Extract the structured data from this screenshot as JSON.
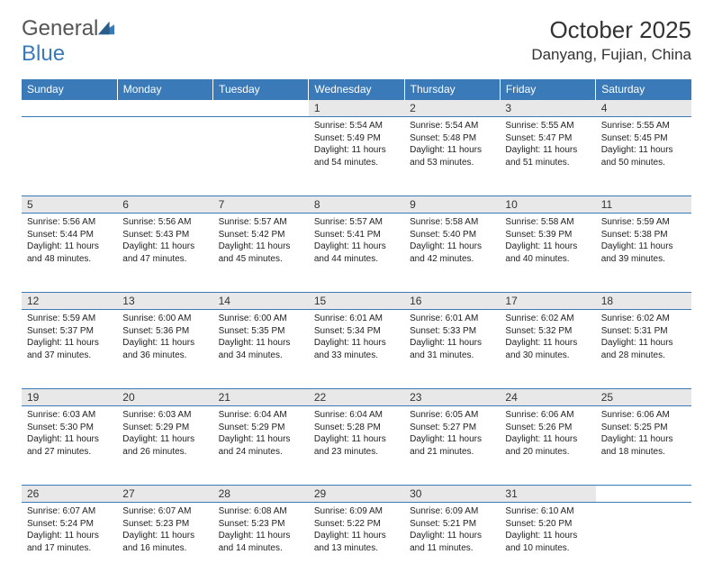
{
  "logo": {
    "word1": "General",
    "word2": "Blue"
  },
  "title": "October 2025",
  "location": "Danyang, Fujian, China",
  "day_headers": [
    "Sunday",
    "Monday",
    "Tuesday",
    "Wednesday",
    "Thursday",
    "Friday",
    "Saturday"
  ],
  "colors": {
    "header_bg": "#3a7ab8",
    "header_text": "#ffffff",
    "daynum_bg": "#e8e8e8",
    "border": "#3a7ab8"
  },
  "weeks": [
    {
      "nums": [
        "",
        "",
        "",
        "1",
        "2",
        "3",
        "4"
      ],
      "cells": [
        null,
        null,
        null,
        {
          "sr": "5:54 AM",
          "ss": "5:49 PM",
          "dl": "11 hours and 54 minutes."
        },
        {
          "sr": "5:54 AM",
          "ss": "5:48 PM",
          "dl": "11 hours and 53 minutes."
        },
        {
          "sr": "5:55 AM",
          "ss": "5:47 PM",
          "dl": "11 hours and 51 minutes."
        },
        {
          "sr": "5:55 AM",
          "ss": "5:45 PM",
          "dl": "11 hours and 50 minutes."
        }
      ]
    },
    {
      "nums": [
        "5",
        "6",
        "7",
        "8",
        "9",
        "10",
        "11"
      ],
      "cells": [
        {
          "sr": "5:56 AM",
          "ss": "5:44 PM",
          "dl": "11 hours and 48 minutes."
        },
        {
          "sr": "5:56 AM",
          "ss": "5:43 PM",
          "dl": "11 hours and 47 minutes."
        },
        {
          "sr": "5:57 AM",
          "ss": "5:42 PM",
          "dl": "11 hours and 45 minutes."
        },
        {
          "sr": "5:57 AM",
          "ss": "5:41 PM",
          "dl": "11 hours and 44 minutes."
        },
        {
          "sr": "5:58 AM",
          "ss": "5:40 PM",
          "dl": "11 hours and 42 minutes."
        },
        {
          "sr": "5:58 AM",
          "ss": "5:39 PM",
          "dl": "11 hours and 40 minutes."
        },
        {
          "sr": "5:59 AM",
          "ss": "5:38 PM",
          "dl": "11 hours and 39 minutes."
        }
      ]
    },
    {
      "nums": [
        "12",
        "13",
        "14",
        "15",
        "16",
        "17",
        "18"
      ],
      "cells": [
        {
          "sr": "5:59 AM",
          "ss": "5:37 PM",
          "dl": "11 hours and 37 minutes."
        },
        {
          "sr": "6:00 AM",
          "ss": "5:36 PM",
          "dl": "11 hours and 36 minutes."
        },
        {
          "sr": "6:00 AM",
          "ss": "5:35 PM",
          "dl": "11 hours and 34 minutes."
        },
        {
          "sr": "6:01 AM",
          "ss": "5:34 PM",
          "dl": "11 hours and 33 minutes."
        },
        {
          "sr": "6:01 AM",
          "ss": "5:33 PM",
          "dl": "11 hours and 31 minutes."
        },
        {
          "sr": "6:02 AM",
          "ss": "5:32 PM",
          "dl": "11 hours and 30 minutes."
        },
        {
          "sr": "6:02 AM",
          "ss": "5:31 PM",
          "dl": "11 hours and 28 minutes."
        }
      ]
    },
    {
      "nums": [
        "19",
        "20",
        "21",
        "22",
        "23",
        "24",
        "25"
      ],
      "cells": [
        {
          "sr": "6:03 AM",
          "ss": "5:30 PM",
          "dl": "11 hours and 27 minutes."
        },
        {
          "sr": "6:03 AM",
          "ss": "5:29 PM",
          "dl": "11 hours and 26 minutes."
        },
        {
          "sr": "6:04 AM",
          "ss": "5:29 PM",
          "dl": "11 hours and 24 minutes."
        },
        {
          "sr": "6:04 AM",
          "ss": "5:28 PM",
          "dl": "11 hours and 23 minutes."
        },
        {
          "sr": "6:05 AM",
          "ss": "5:27 PM",
          "dl": "11 hours and 21 minutes."
        },
        {
          "sr": "6:06 AM",
          "ss": "5:26 PM",
          "dl": "11 hours and 20 minutes."
        },
        {
          "sr": "6:06 AM",
          "ss": "5:25 PM",
          "dl": "11 hours and 18 minutes."
        }
      ]
    },
    {
      "nums": [
        "26",
        "27",
        "28",
        "29",
        "30",
        "31",
        ""
      ],
      "cells": [
        {
          "sr": "6:07 AM",
          "ss": "5:24 PM",
          "dl": "11 hours and 17 minutes."
        },
        {
          "sr": "6:07 AM",
          "ss": "5:23 PM",
          "dl": "11 hours and 16 minutes."
        },
        {
          "sr": "6:08 AM",
          "ss": "5:23 PM",
          "dl": "11 hours and 14 minutes."
        },
        {
          "sr": "6:09 AM",
          "ss": "5:22 PM",
          "dl": "11 hours and 13 minutes."
        },
        {
          "sr": "6:09 AM",
          "ss": "5:21 PM",
          "dl": "11 hours and 11 minutes."
        },
        {
          "sr": "6:10 AM",
          "ss": "5:20 PM",
          "dl": "11 hours and 10 minutes."
        },
        null
      ]
    }
  ],
  "labels": {
    "sunrise": "Sunrise:",
    "sunset": "Sunset:",
    "daylight": "Daylight:"
  }
}
